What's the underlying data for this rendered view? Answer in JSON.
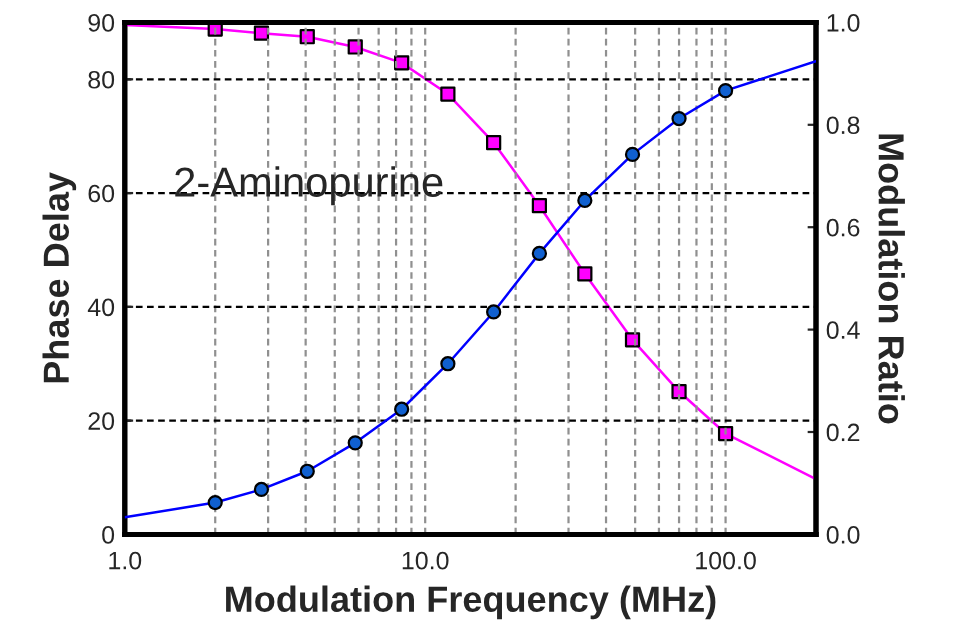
{
  "chart_data": {
    "type": "scatter",
    "xlabel": "Modulation Frequency (MHz)",
    "ylabel": "Phase Delay",
    "y2label": "Modulation Ratio",
    "annotations": [
      "2-Aminopurine"
    ],
    "log": "x",
    "grid": true,
    "legend": false,
    "xlim": [
      1,
      200
    ],
    "xticks": [
      {
        "value": 1,
        "label": "1.0"
      },
      {
        "value": 2,
        "label": null
      },
      {
        "value": 3,
        "label": null
      },
      {
        "value": 4,
        "label": null
      },
      {
        "value": 5,
        "label": null
      },
      {
        "value": 6,
        "label": null
      },
      {
        "value": 7,
        "label": null
      },
      {
        "value": 8,
        "label": null
      },
      {
        "value": 9,
        "label": null
      },
      {
        "value": 10,
        "label": "10.0"
      },
      {
        "value": 20,
        "label": null
      },
      {
        "value": 30,
        "label": null
      },
      {
        "value": 40,
        "label": null
      },
      {
        "value": 50,
        "label": null
      },
      {
        "value": 60,
        "label": null
      },
      {
        "value": 70,
        "label": null
      },
      {
        "value": 80,
        "label": null
      },
      {
        "value": 90,
        "label": null
      },
      {
        "value": 100,
        "label": "100.0"
      }
    ],
    "ylim": [
      0,
      90
    ],
    "yticks": [
      0,
      20,
      40,
      60,
      80,
      90
    ],
    "y2lim": [
      0,
      1
    ],
    "y2ticks": [
      {
        "value": 0,
        "label": "0.0"
      },
      {
        "value": 0.2,
        "label": "0.2"
      },
      {
        "value": 0.4,
        "label": "0.4"
      },
      {
        "value": 0.6,
        "label": "0.6"
      },
      {
        "value": 0.8,
        "label": "0.8"
      },
      {
        "value": 1,
        "label": "1.0"
      }
    ],
    "series": [
      {
        "type": "line",
        "color": "#0000ff",
        "marker": "none",
        "line_style": "solid",
        "x": [
          1,
          2,
          2.85,
          4.05,
          5.85,
          8.35,
          11.9,
          16.9,
          24,
          34,
          49,
          70,
          100,
          200
        ],
        "values": [
          3.0,
          5.6,
          7.9,
          11.1,
          16.1,
          22.0,
          30.0,
          39.1,
          49.4,
          58.7,
          66.8,
          73.1,
          78.0,
          83.2
        ]
      },
      {
        "type": "line",
        "color": "#ff00ff",
        "axis": "y2",
        "marker": "none",
        "line_style": "solid",
        "x": [
          1,
          2,
          2.85,
          4.05,
          5.85,
          8.35,
          11.9,
          16.9,
          24,
          34,
          49,
          70,
          100,
          200
        ],
        "values": [
          0.995,
          0.987,
          0.979,
          0.972,
          0.952,
          0.921,
          0.86,
          0.765,
          0.642,
          0.509,
          0.38,
          0.279,
          0.197,
          0.108
        ]
      },
      {
        "color": "#1060d0",
        "marker": "circle",
        "x": [
          2,
          2.85,
          4.05,
          5.85,
          8.35,
          11.9,
          16.9,
          24,
          34,
          49,
          70,
          100
        ],
        "values": [
          5.6,
          7.9,
          11.1,
          16.1,
          22.0,
          30.0,
          39.1,
          49.4,
          58.7,
          66.8,
          73.1,
          78.0
        ]
      },
      {
        "color": "#ff00ff",
        "axis": "y2",
        "marker": "square",
        "x": [
          2,
          2.85,
          4.05,
          5.85,
          8.35,
          11.9,
          16.9,
          24,
          34,
          49,
          70,
          100
        ],
        "values": [
          0.987,
          0.979,
          0.972,
          0.952,
          0.921,
          0.86,
          0.765,
          0.642,
          0.509,
          0.38,
          0.279,
          0.197
        ]
      }
    ]
  }
}
